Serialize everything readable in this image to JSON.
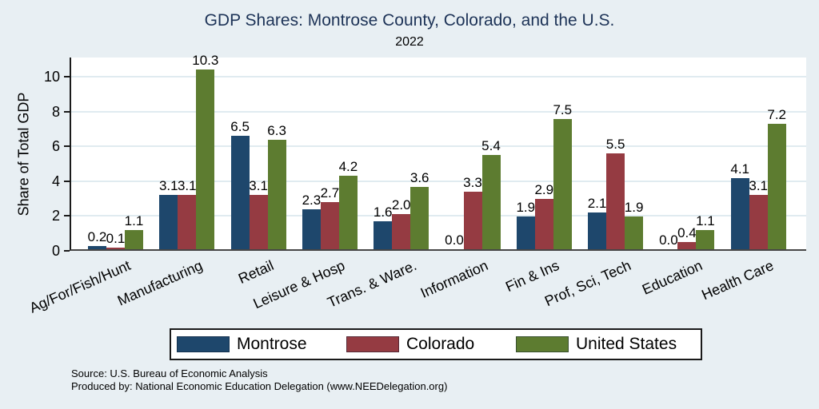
{
  "title": "GDP Shares: Montrose County, Colorado, and the U.S.",
  "subtitle": "2022",
  "chart_data": {
    "type": "bar",
    "title": "GDP Shares: Montrose County, Colorado, and the U.S.",
    "subtitle": "2022",
    "xlabel": "",
    "ylabel": "Share of Total GDP",
    "ylim": [
      0,
      11.1
    ],
    "yticks": [
      0,
      2,
      4,
      6,
      8,
      10
    ],
    "grid": true,
    "legend_position": "bottom",
    "value_label_decimals": 1,
    "categories": [
      "Ag/For/Fish/Hunt",
      "Manufacturing",
      "Retail",
      "Leisure & Hosp",
      "Trans. & Ware.",
      "Information",
      "Fin & Ins",
      "Prof, Sci, Tech",
      "Education",
      "Health Care"
    ],
    "series": [
      {
        "name": "Montrose",
        "color": "#1e476c",
        "values": [
          0.2,
          3.1,
          6.5,
          2.3,
          1.6,
          0.0,
          1.9,
          2.1,
          0.0,
          4.1
        ]
      },
      {
        "name": "Colorado",
        "color": "#953b42",
        "values": [
          0.1,
          3.1,
          3.1,
          2.7,
          2.0,
          3.3,
          2.9,
          5.5,
          0.4,
          3.1
        ]
      },
      {
        "name": "United States",
        "color": "#5d7c30",
        "values": [
          1.1,
          10.3,
          6.3,
          4.2,
          3.6,
          5.4,
          7.5,
          1.9,
          1.1,
          7.2
        ]
      }
    ]
  },
  "footer": {
    "source": "Source: U.S. Bureau of Economic Analysis",
    "produced_by": "Produced by: National Economic Education Delegation (www.NEEDelegation.org)"
  },
  "colors": {
    "background": "#e8eff3",
    "plot_background": "#ffffff",
    "title_text": "#1d3357",
    "gridline": "#e0ebf0",
    "axis_line": "#1a1a1a"
  }
}
